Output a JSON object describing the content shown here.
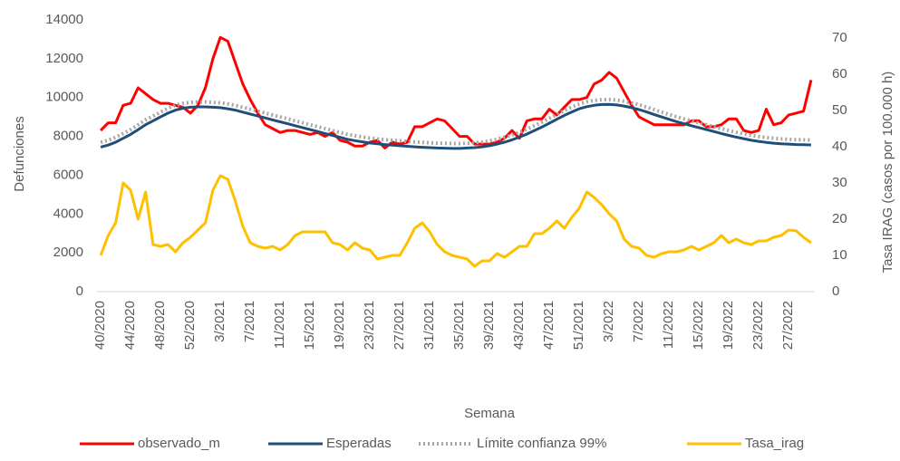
{
  "chart_data": {
    "type": "line",
    "x_label": "Semana",
    "y_label": "Defunciones",
    "y2_label": "Tasa IRAG (casos por 100.000 h)",
    "categories": [
      "40/2020",
      null,
      null,
      null,
      "44/2020",
      null,
      null,
      null,
      "48/2020",
      null,
      null,
      null,
      "52/2020",
      null,
      null,
      null,
      "3/2021",
      null,
      null,
      null,
      "7/2021",
      null,
      null,
      null,
      "11/2021",
      null,
      null,
      null,
      "15/2021",
      null,
      null,
      null,
      "19/2021",
      null,
      null,
      null,
      "23/2021",
      null,
      null,
      null,
      "27/2021",
      null,
      null,
      null,
      "31/2021",
      null,
      null,
      null,
      "35/2021",
      null,
      null,
      null,
      "39/2021",
      null,
      null,
      null,
      "43/2021",
      null,
      null,
      null,
      "47/2021",
      null,
      null,
      null,
      "51/2021",
      null,
      null,
      null,
      "3/2022",
      null,
      null,
      null,
      "7/2022",
      null,
      null,
      null,
      "11/2022",
      null,
      null,
      null,
      "15/2022",
      null,
      null,
      null,
      "19/2022",
      null,
      null,
      null,
      "23/2022",
      null,
      null,
      null,
      "27/2022",
      null,
      null,
      null
    ],
    "series": [
      {
        "name": "observado_m",
        "color": "#ff0000",
        "dash": "solid",
        "values": [
          8300,
          8700,
          8700,
          9600,
          9700,
          10500,
          10200,
          9900,
          9700,
          9700,
          9600,
          9500,
          9200,
          9600,
          10500,
          12000,
          13100,
          12900,
          11800,
          10700,
          9900,
          9200,
          8600,
          8400,
          8200,
          8300,
          8300,
          8200,
          8100,
          8200,
          8000,
          8200,
          7800,
          7700,
          7500,
          7500,
          7700,
          7800,
          7400,
          7700,
          7600,
          7700,
          8500,
          8500,
          8700,
          8900,
          8800,
          8400,
          8000,
          8000,
          7600,
          7600,
          7600,
          7700,
          7900,
          8300,
          7900,
          8800,
          8900,
          8900,
          9400,
          9100,
          9500,
          9900,
          9900,
          10000,
          10700,
          10900,
          11300,
          11000,
          10300,
          9600,
          9000,
          8800,
          8600,
          8600,
          8600,
          8600,
          8600,
          8800,
          8800,
          8500,
          8500,
          8600,
          8900,
          8900,
          8300,
          8200,
          8300,
          9400,
          8600,
          8700,
          9100,
          9200,
          9300,
          10900
        ]
      },
      {
        "name": "Esperadas",
        "color": "#1f4e79",
        "dash": "solid",
        "values": [
          7450,
          7550,
          7700,
          7900,
          8100,
          8350,
          8600,
          8800,
          9000,
          9200,
          9350,
          9450,
          9500,
          9520,
          9520,
          9500,
          9480,
          9420,
          9350,
          9250,
          9150,
          9050,
          8950,
          8850,
          8750,
          8650,
          8550,
          8450,
          8350,
          8250,
          8150,
          8050,
          7950,
          7850,
          7780,
          7720,
          7660,
          7620,
          7580,
          7550,
          7520,
          7490,
          7460,
          7440,
          7420,
          7400,
          7390,
          7380,
          7380,
          7400,
          7420,
          7460,
          7520,
          7600,
          7700,
          7820,
          7960,
          8120,
          8300,
          8480,
          8680,
          8880,
          9080,
          9260,
          9420,
          9530,
          9600,
          9640,
          9650,
          9620,
          9560,
          9480,
          9380,
          9260,
          9130,
          9000,
          8880,
          8760,
          8650,
          8550,
          8450,
          8350,
          8250,
          8150,
          8050,
          7960,
          7880,
          7800,
          7740,
          7690,
          7650,
          7620,
          7600,
          7580,
          7570,
          7560
        ]
      },
      {
        "name": "Límite confianza 99%",
        "color": "#a6a6a6",
        "dash": "dotted",
        "values": [
          7700,
          7800,
          7950,
          8150,
          8350,
          8600,
          8850,
          9050,
          9250,
          9450,
          9600,
          9700,
          9750,
          9770,
          9770,
          9750,
          9730,
          9670,
          9600,
          9500,
          9400,
          9300,
          9200,
          9100,
          9000,
          8900,
          8800,
          8700,
          8600,
          8500,
          8400,
          8300,
          8200,
          8100,
          8030,
          7970,
          7910,
          7870,
          7830,
          7800,
          7770,
          7740,
          7710,
          7690,
          7670,
          7650,
          7640,
          7630,
          7630,
          7650,
          7670,
          7710,
          7770,
          7850,
          7950,
          8070,
          8210,
          8370,
          8550,
          8730,
          8930,
          9130,
          9330,
          9510,
          9670,
          9780,
          9850,
          9890,
          9900,
          9870,
          9810,
          9730,
          9630,
          9510,
          9380,
          9250,
          9130,
          9010,
          8900,
          8800,
          8700,
          8600,
          8500,
          8400,
          8300,
          8210,
          8130,
          8050,
          7990,
          7940,
          7900,
          7870,
          7850,
          7830,
          7820,
          7810
        ]
      },
      {
        "name": "Tasa_irag",
        "color": "#ffc000",
        "dash": "solid",
        "axis": "y2",
        "values": [
          10,
          15.5,
          19,
          30,
          28,
          20,
          27.5,
          13,
          12.5,
          13,
          11,
          13.5,
          15,
          17,
          19,
          28,
          32,
          31,
          25,
          18,
          13.5,
          12.5,
          12,
          12.5,
          11.5,
          13,
          15.5,
          16.5,
          16.5,
          16.5,
          16.5,
          13.5,
          13,
          11.5,
          13.5,
          12,
          11.5,
          9,
          9.5,
          10,
          10,
          13.5,
          17.5,
          19,
          16.5,
          13,
          11,
          10,
          9.5,
          9,
          7,
          8.5,
          8.5,
          10.5,
          9.5,
          11,
          12.5,
          12.5,
          16,
          16,
          17.5,
          19.5,
          17.5,
          20.5,
          23,
          27.5,
          26,
          24,
          21.5,
          19.5,
          14.5,
          12.5,
          12,
          10,
          9.5,
          10.5,
          11,
          11,
          11.5,
          12.5,
          11.5,
          12.5,
          13.5,
          15.5,
          13.5,
          14.5,
          13.5,
          13,
          14,
          14,
          15,
          15.5,
          17,
          16.8,
          15,
          13.5
        ]
      }
    ],
    "ylim": [
      0,
      14000
    ],
    "yticks": [
      0,
      2000,
      4000,
      6000,
      8000,
      10000,
      12000,
      14000
    ],
    "y2lim": [
      0,
      75
    ],
    "y2ticks": [
      0,
      10,
      20,
      30,
      40,
      50,
      60,
      70
    ],
    "grid": false,
    "legend": "bottom"
  }
}
